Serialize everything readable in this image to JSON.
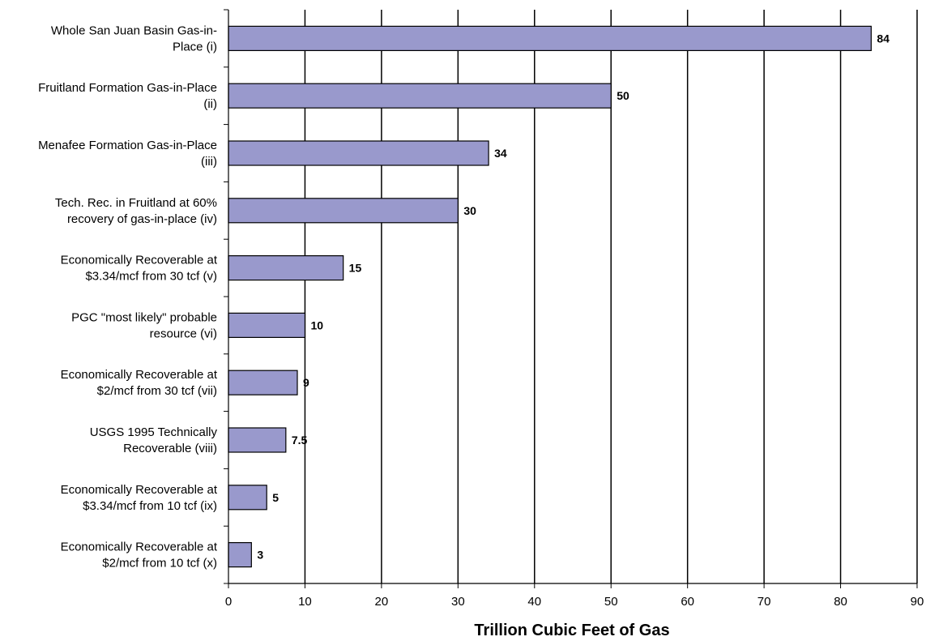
{
  "chart_data": {
    "type": "bar",
    "orientation": "horizontal",
    "categories": [
      [
        "Whole San Juan Basin Gas-in-",
        "Place (i)"
      ],
      [
        "Fruitland Formation Gas-in-Place",
        "(ii)"
      ],
      [
        "Menafee Formation Gas-in-Place",
        "(iii)"
      ],
      [
        "Tech. Rec. in Fruitland at 60%",
        "recovery of gas-in-place (iv)"
      ],
      [
        "Economically Recoverable at",
        "$3.34/mcf from 30 tcf (v)"
      ],
      [
        "PGC \"most likely\" probable",
        "resource (vi)"
      ],
      [
        "Economically Recoverable at",
        "$2/mcf from 30 tcf (vii)"
      ],
      [
        "USGS 1995 Technically",
        "Recoverable (viii)"
      ],
      [
        "Economically Recoverable at",
        "$3.34/mcf from 10 tcf (ix)"
      ],
      [
        "Economically Recoverable at",
        "$2/mcf from 10 tcf (x)"
      ]
    ],
    "values": [
      84,
      50,
      34,
      30,
      15,
      10,
      9,
      7.5,
      5,
      3
    ],
    "data_labels": [
      "84",
      "50",
      "34",
      "30",
      "15",
      "10",
      "9",
      "7.5",
      "5",
      "3"
    ],
    "xlim": [
      0,
      90
    ],
    "xticks": [
      0,
      10,
      20,
      30,
      40,
      50,
      60,
      70,
      80,
      90
    ],
    "xlabel": "Trillion Cubic Feet of Gas",
    "ylabel": "",
    "title": "",
    "grid": "vertical",
    "legend": "none",
    "bar_color": "#9999cc",
    "bar_edge_color": "#000000"
  }
}
